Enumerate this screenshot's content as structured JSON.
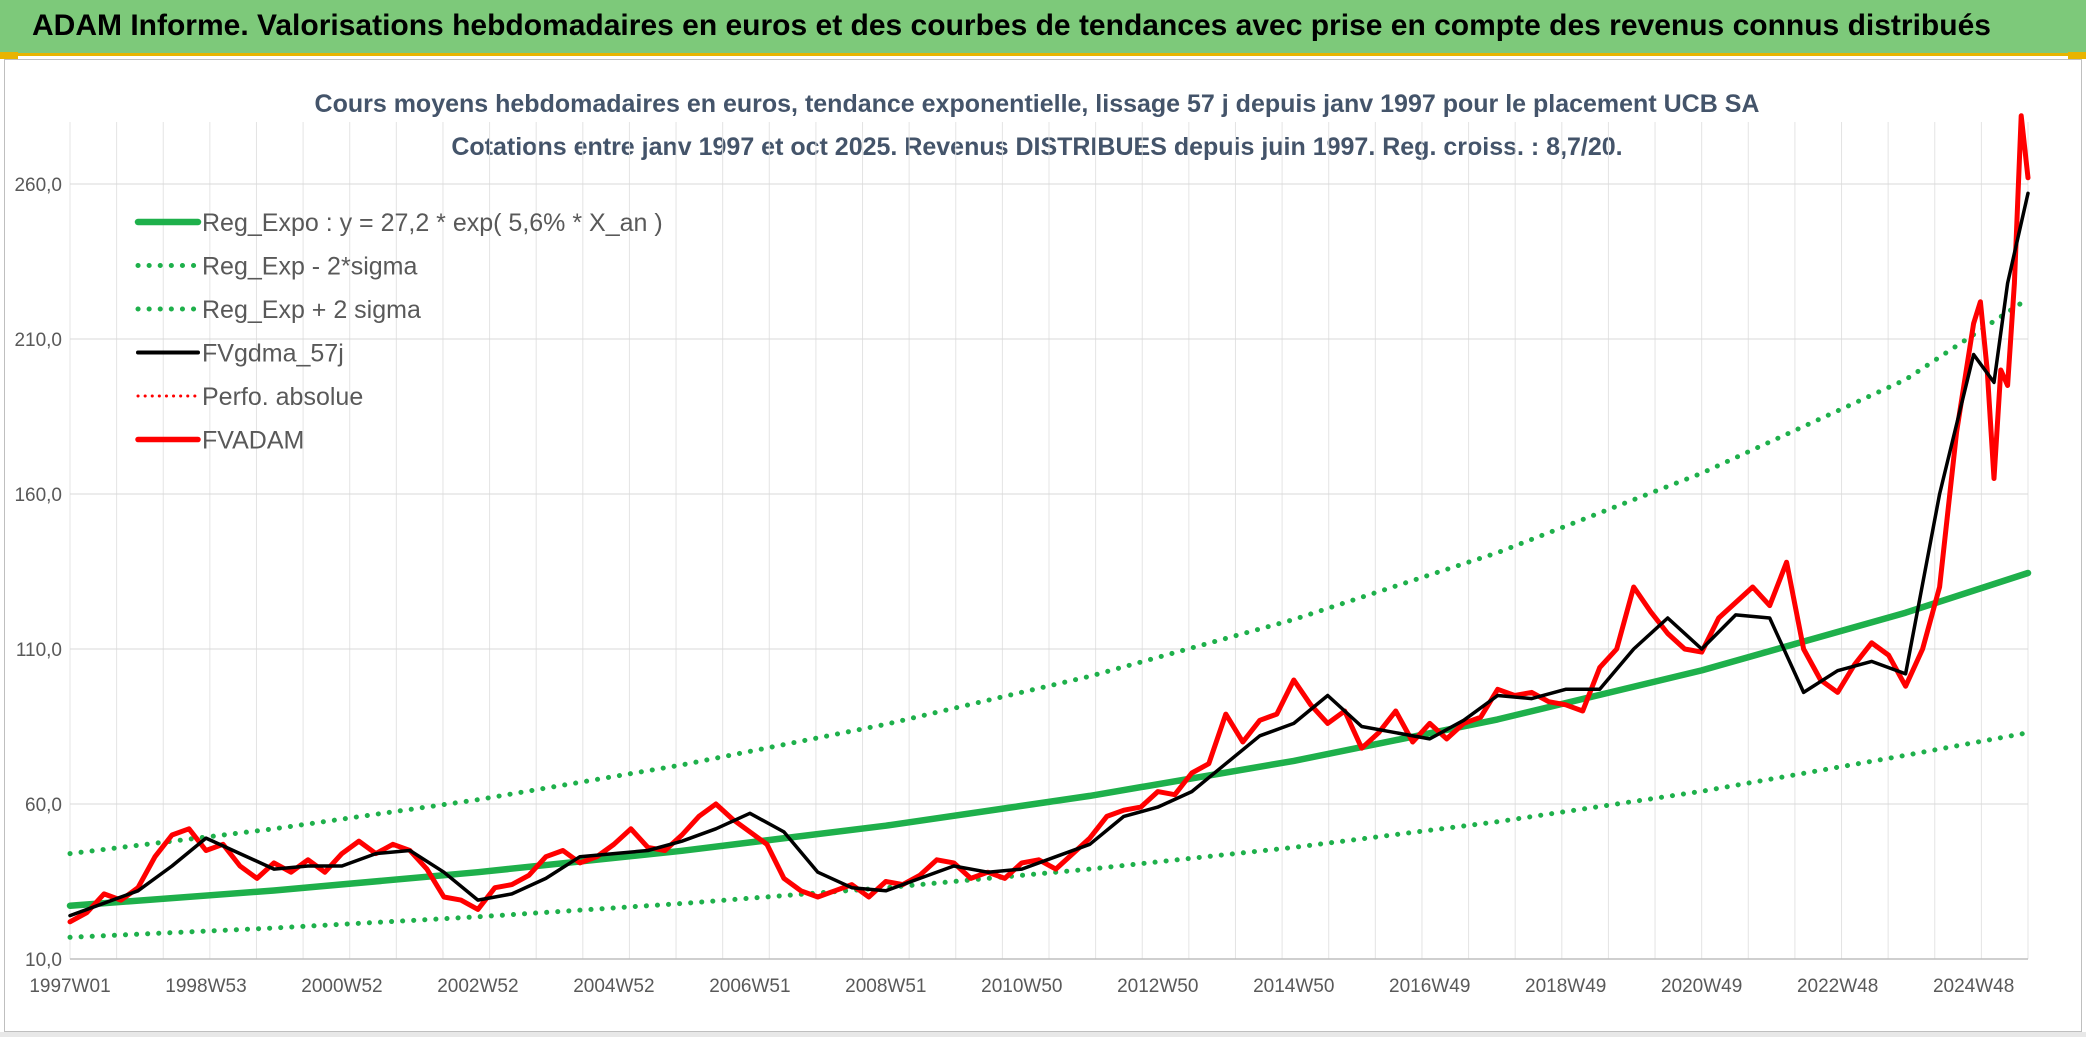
{
  "header": {
    "title": "ADAM Informe. Valorisations hebdomadaires en euros et des courbes de tendances avec prise en compte des revenus connus distribués"
  },
  "chart_data": {
    "type": "line",
    "title_line1": "Cours moyens hebdomadaires en euros, tendance exponentielle, lissage 57 j depuis janv 1997 pour le placement UCB SA",
    "title_line2": "Cotations entre janv 1997 et oct 2025. Revenus DISTRIBUES depuis juin 1997. Reg. croiss. : 8,7/20.",
    "x_range": [
      1997.0,
      2025.8
    ],
    "ylim": [
      10,
      280
    ],
    "y_ticks": [
      10,
      60,
      110,
      160,
      210,
      260
    ],
    "y_tick_labels": [
      "10,0",
      "60,0",
      "110,0",
      "160,0",
      "210,0",
      "260,0"
    ],
    "x_ticks": [
      {
        "label": "1997W01",
        "t": 1997.0
      },
      {
        "label": "1998W53",
        "t": 1999.0
      },
      {
        "label": "2000W52",
        "t": 2001.0
      },
      {
        "label": "2002W52",
        "t": 2003.0
      },
      {
        "label": "2004W52",
        "t": 2005.0
      },
      {
        "label": "2006W51",
        "t": 2007.0
      },
      {
        "label": "2008W51",
        "t": 2009.0
      },
      {
        "label": "2010W50",
        "t": 2011.0
      },
      {
        "label": "2012W50",
        "t": 2013.0
      },
      {
        "label": "2014W50",
        "t": 2015.0
      },
      {
        "label": "2016W49",
        "t": 2017.0
      },
      {
        "label": "2018W49",
        "t": 2019.0
      },
      {
        "label": "2020W49",
        "t": 2021.0
      },
      {
        "label": "2022W48",
        "t": 2023.0
      },
      {
        "label": "2024W48",
        "t": 2025.0
      }
    ],
    "grid": true,
    "legend_position": "top-left",
    "series": [
      {
        "name": "Reg_Expo : y = 27,2 * exp( 5,6% *  X_an )",
        "color": "#1eb04b",
        "style": "solid",
        "x": [
          1997.0,
          2000.0,
          2003.0,
          2006.0,
          2009.0,
          2012.0,
          2015.0,
          2018.0,
          2021.0,
          2024.0,
          2025.8
        ],
        "y": [
          27.2,
          32.1,
          38.0,
          44.9,
          53.0,
          62.6,
          73.9,
          87.3,
          103.1,
          121.7,
          134.5
        ]
      },
      {
        "name": "Reg_Exp - 2*sigma",
        "color": "#1eb04b",
        "style": "dotted",
        "x": [
          1997.0,
          2000.0,
          2003.0,
          2006.0,
          2009.0,
          2012.0,
          2015.0,
          2018.0,
          2021.0,
          2024.0,
          2025.8
        ],
        "y": [
          17.0,
          20.0,
          23.6,
          27.9,
          33.0,
          39.0,
          46.0,
          54.3,
          64.1,
          75.7,
          83.0
        ]
      },
      {
        "name": "Reg_Exp + 2 sigma",
        "color": "#1eb04b",
        "style": "dotted",
        "x": [
          1997.0,
          2000.0,
          2003.0,
          2006.0,
          2009.0,
          2012.0,
          2015.0,
          2018.0,
          2021.0,
          2024.0,
          2025.8
        ],
        "y": [
          44.0,
          52.0,
          61.4,
          72.6,
          85.7,
          101.2,
          119.5,
          141.1,
          166.7,
          196.9,
          223.0
        ]
      },
      {
        "name": "FVgdma_57j",
        "color": "#000000",
        "style": "solid",
        "x": [
          1997.0,
          1997.5,
          1998.0,
          1998.5,
          1999.0,
          1999.5,
          2000.0,
          2000.5,
          2001.0,
          2001.5,
          2002.0,
          2002.5,
          2003.0,
          2003.5,
          2004.0,
          2004.5,
          2005.0,
          2005.5,
          2006.0,
          2006.5,
          2007.0,
          2007.5,
          2008.0,
          2008.5,
          2009.0,
          2009.5,
          2010.0,
          2010.5,
          2011.0,
          2011.5,
          2012.0,
          2012.5,
          2013.0,
          2013.5,
          2014.0,
          2014.5,
          2015.0,
          2015.5,
          2016.0,
          2016.5,
          2017.0,
          2017.5,
          2018.0,
          2018.5,
          2019.0,
          2019.5,
          2020.0,
          2020.5,
          2021.0,
          2021.5,
          2022.0,
          2022.5,
          2023.0,
          2023.5,
          2024.0,
          2024.5,
          2025.0,
          2025.3,
          2025.5,
          2025.8
        ],
        "y": [
          24,
          28,
          32,
          40,
          49,
          44,
          39,
          40,
          40,
          44,
          45,
          38,
          29,
          31,
          36,
          43,
          44,
          45,
          48,
          52,
          57,
          51,
          38,
          33,
          32,
          36,
          40,
          38,
          39,
          43,
          47,
          56,
          59,
          64,
          73,
          82,
          86,
          95,
          85,
          83,
          81,
          87,
          95,
          94,
          97,
          97,
          110,
          120,
          110,
          121,
          120,
          96,
          103,
          106,
          102,
          160,
          205,
          196,
          228,
          257
        ]
      },
      {
        "name": "Perfo. absolue",
        "color": "#ff0000",
        "style": "dotted",
        "x": [],
        "y": []
      },
      {
        "name": "FVADAM",
        "color": "#ff0000",
        "style": "solid",
        "x": [
          1997.0,
          1997.25,
          1997.5,
          1997.75,
          1998.0,
          1998.25,
          1998.5,
          1998.75,
          1999.0,
          1999.25,
          1999.5,
          1999.75,
          2000.0,
          2000.25,
          2000.5,
          2000.75,
          2001.0,
          2001.25,
          2001.5,
          2001.75,
          2002.0,
          2002.25,
          2002.5,
          2002.75,
          2003.0,
          2003.25,
          2003.5,
          2003.75,
          2004.0,
          2004.25,
          2004.5,
          2004.75,
          2005.0,
          2005.25,
          2005.5,
          2005.75,
          2006.0,
          2006.25,
          2006.5,
          2006.75,
          2007.0,
          2007.25,
          2007.5,
          2007.75,
          2008.0,
          2008.25,
          2008.5,
          2008.75,
          2009.0,
          2009.25,
          2009.5,
          2009.75,
          2010.0,
          2010.25,
          2010.5,
          2010.75,
          2011.0,
          2011.25,
          2011.5,
          2011.75,
          2012.0,
          2012.25,
          2012.5,
          2012.75,
          2013.0,
          2013.25,
          2013.5,
          2013.75,
          2014.0,
          2014.25,
          2014.5,
          2014.75,
          2015.0,
          2015.25,
          2015.5,
          2015.75,
          2016.0,
          2016.25,
          2016.5,
          2016.75,
          2017.0,
          2017.25,
          2017.5,
          2017.75,
          2018.0,
          2018.25,
          2018.5,
          2018.75,
          2019.0,
          2019.25,
          2019.5,
          2019.75,
          2020.0,
          2020.25,
          2020.5,
          2020.75,
          2021.0,
          2021.25,
          2021.5,
          2021.75,
          2022.0,
          2022.25,
          2022.5,
          2022.75,
          2023.0,
          2023.25,
          2023.5,
          2023.75,
          2024.0,
          2024.25,
          2024.5,
          2024.75,
          2025.0,
          2025.1,
          2025.2,
          2025.3,
          2025.4,
          2025.5,
          2025.6,
          2025.7,
          2025.8
        ],
        "y": [
          22,
          25,
          31,
          29,
          33,
          43,
          50,
          52,
          45,
          47,
          40,
          36,
          41,
          38,
          42,
          38,
          44,
          48,
          44,
          47,
          45,
          39,
          30,
          29,
          26,
          33,
          34,
          37,
          43,
          45,
          41,
          43,
          47,
          52,
          46,
          45,
          50,
          56,
          60,
          55,
          51,
          47,
          36,
          32,
          30,
          32,
          34,
          30,
          35,
          34,
          37,
          42,
          41,
          36,
          38,
          36,
          41,
          42,
          39,
          44,
          49,
          56,
          58,
          59,
          64,
          63,
          70,
          73,
          89,
          80,
          87,
          89,
          100,
          92,
          86,
          90,
          78,
          83,
          90,
          80,
          86,
          81,
          86,
          88,
          97,
          95,
          96,
          93,
          92,
          90,
          104,
          110,
          130,
          122,
          115,
          110,
          109,
          120,
          125,
          130,
          124,
          138,
          110,
          100,
          96,
          105,
          112,
          108,
          98,
          110,
          130,
          180,
          215,
          222,
          200,
          165,
          200,
          195,
          228,
          282,
          262
        ]
      }
    ]
  }
}
